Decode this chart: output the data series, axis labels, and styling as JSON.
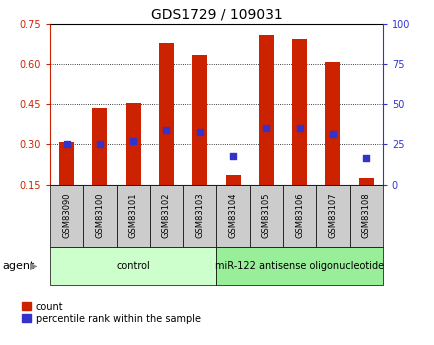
{
  "title": "GDS1729 / 109031",
  "samples": [
    "GSM83090",
    "GSM83100",
    "GSM83101",
    "GSM83102",
    "GSM83103",
    "GSM83104",
    "GSM83105",
    "GSM83106",
    "GSM83107",
    "GSM83108"
  ],
  "count_values": [
    0.31,
    0.435,
    0.455,
    0.68,
    0.635,
    0.185,
    0.71,
    0.695,
    0.61,
    0.175
  ],
  "percentile_values": [
    0.302,
    0.302,
    0.312,
    0.355,
    0.345,
    0.258,
    0.36,
    0.36,
    0.338,
    0.248
  ],
  "baseline": 0.15,
  "ylim_left": [
    0.15,
    0.75
  ],
  "ylim_right": [
    0,
    100
  ],
  "yticks_left": [
    0.15,
    0.3,
    0.45,
    0.6,
    0.75
  ],
  "yticks_right": [
    0,
    25,
    50,
    75,
    100
  ],
  "bar_color": "#cc2200",
  "dot_color": "#3333cc",
  "groups": [
    {
      "label": "control",
      "start": 0,
      "end": 5,
      "color": "#ccffcc"
    },
    {
      "label": "miR-122 antisense oligonucleotide",
      "start": 5,
      "end": 10,
      "color": "#99ee99"
    }
  ],
  "agent_label": "agent",
  "legend_count_label": "count",
  "legend_percentile_label": "percentile rank within the sample",
  "bar_width": 0.45,
  "title_fontsize": 10,
  "axis_label_color_left": "#cc2200",
  "axis_label_color_right": "#3333cc",
  "bg_color": "#ffffff",
  "sample_box_color": "#cccccc",
  "sample_label_fontsize": 6.0,
  "group_label_fontsize": 7.0,
  "legend_fontsize": 7.0,
  "agent_fontsize": 8.0
}
